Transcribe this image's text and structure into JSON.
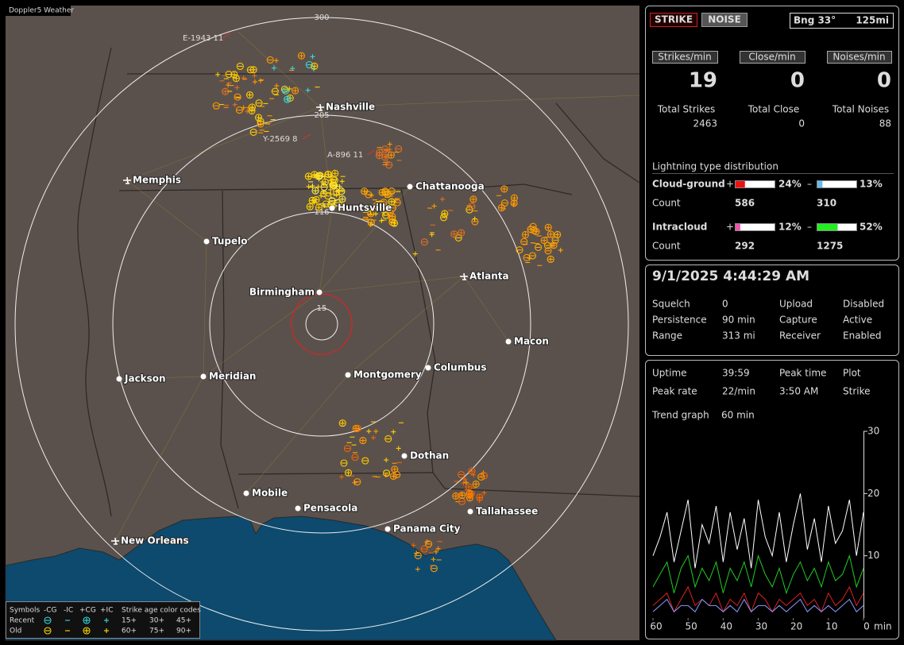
{
  "map": {
    "title": "Doppler5 Weather",
    "ring_labels": [
      "300",
      "205",
      "116",
      "15"
    ],
    "aircraft": [
      "E-1943 11",
      "Y-2569 8",
      "A-896 11"
    ],
    "cities": [
      "Nashville",
      "Memphis",
      "Chattanooga",
      "Huntsville",
      "Tupelo",
      "Birmingham",
      "Atlanta",
      "Macon",
      "Jackson",
      "Meridian",
      "Montgomery",
      "Columbus",
      "Dothan",
      "Mobile",
      "Pensacola",
      "Tallahassee",
      "Panama City",
      "New Orleans"
    ],
    "legend": {
      "symbols": "Symbols",
      "types": [
        "-CG",
        "-IC",
        "+CG",
        "+IC"
      ],
      "age_title": "Strike age color codes",
      "rows": [
        {
          "label": "Recent",
          "ages": [
            "15+",
            "30+",
            "45+"
          ]
        },
        {
          "label": "Old",
          "ages": [
            "60+",
            "75+",
            "90+"
          ]
        }
      ]
    }
  },
  "status": {
    "buttons": [
      "STRIKE",
      "NOISE"
    ],
    "bearing": "Bng 33°",
    "range": "125mi",
    "rates": [
      {
        "label": "Strikes/min",
        "value": 19
      },
      {
        "label": "Close/min",
        "value": 0
      },
      {
        "label": "Noises/min",
        "value": 0
      }
    ],
    "totals": [
      {
        "label": "Total Strikes",
        "value": 2463
      },
      {
        "label": "Total Close",
        "value": 0
      },
      {
        "label": "Total Noises",
        "value": 88
      }
    ],
    "distribution": {
      "title": "Lightning type distribution",
      "count_label": "Count",
      "rows": [
        {
          "label": "Cloud-ground",
          "pos_sign": "+",
          "pos_pct": 24,
          "pos_pct_label": "24%",
          "neg_sign": "–",
          "neg_pct": 13,
          "neg_pct_label": "13%",
          "pos_count": 586,
          "neg_count": 310
        },
        {
          "label": "Intracloud",
          "pos_sign": "+",
          "pos_pct": 12,
          "pos_pct_label": "12%",
          "neg_sign": "–",
          "neg_pct": 52,
          "neg_pct_label": "52%",
          "pos_count": 292,
          "neg_count": 1275
        }
      ]
    }
  },
  "clock": {
    "datetime": "9/1/2025 4:44:29 AM",
    "rows": [
      [
        "Squelch",
        "0",
        "Upload",
        "Disabled"
      ],
      [
        "Persistence",
        "90 min",
        "Capture",
        "Active"
      ],
      [
        "Range",
        "313 mi",
        "Receiver",
        "Enabled"
      ]
    ]
  },
  "trend": {
    "rows": [
      [
        "Uptime",
        "39:59",
        "Peak time",
        "Plot"
      ],
      [
        "Peak rate",
        "22/min",
        "3:50 AM",
        "Strike"
      ]
    ],
    "graph_label": "Trend graph",
    "graph_span": "60 min",
    "xlim": [
      60,
      0
    ],
    "ylim": [
      0,
      30
    ],
    "xticks": [
      60,
      50,
      40,
      30,
      20,
      10,
      0
    ],
    "yticks": [
      10,
      20,
      30
    ],
    "x_unit": "min",
    "x": [
      60,
      58,
      56,
      54,
      52,
      50,
      48,
      46,
      44,
      42,
      40,
      38,
      36,
      34,
      32,
      30,
      28,
      26,
      24,
      22,
      20,
      18,
      16,
      14,
      12,
      10,
      8,
      6,
      4,
      2,
      0
    ],
    "series": [
      {
        "color": "#ffffff",
        "values": [
          10,
          13,
          17,
          9,
          14,
          19,
          8,
          15,
          12,
          18,
          9,
          17,
          11,
          16,
          8,
          19,
          13,
          10,
          17,
          9,
          15,
          20,
          11,
          16,
          9,
          18,
          12,
          14,
          19,
          10,
          17
        ]
      },
      {
        "color": "#22cc22",
        "values": [
          5,
          7,
          9,
          4,
          8,
          10,
          5,
          8,
          6,
          9,
          4,
          8,
          6,
          9,
          5,
          10,
          7,
          5,
          8,
          4,
          7,
          9,
          6,
          8,
          5,
          9,
          6,
          7,
          10,
          5,
          8
        ]
      },
      {
        "color": "#dd2222",
        "values": [
          2,
          3,
          4,
          1,
          3,
          5,
          2,
          3,
          2,
          4,
          1,
          3,
          2,
          4,
          1,
          4,
          3,
          1,
          3,
          2,
          3,
          4,
          2,
          3,
          1,
          4,
          2,
          3,
          5,
          2,
          4
        ]
      },
      {
        "color": "#8899ff",
        "values": [
          1,
          2,
          3,
          1,
          2,
          2,
          1,
          3,
          2,
          2,
          1,
          2,
          1,
          3,
          1,
          2,
          2,
          1,
          2,
          1,
          2,
          3,
          1,
          2,
          1,
          2,
          1,
          2,
          3,
          1,
          2
        ]
      }
    ]
  }
}
